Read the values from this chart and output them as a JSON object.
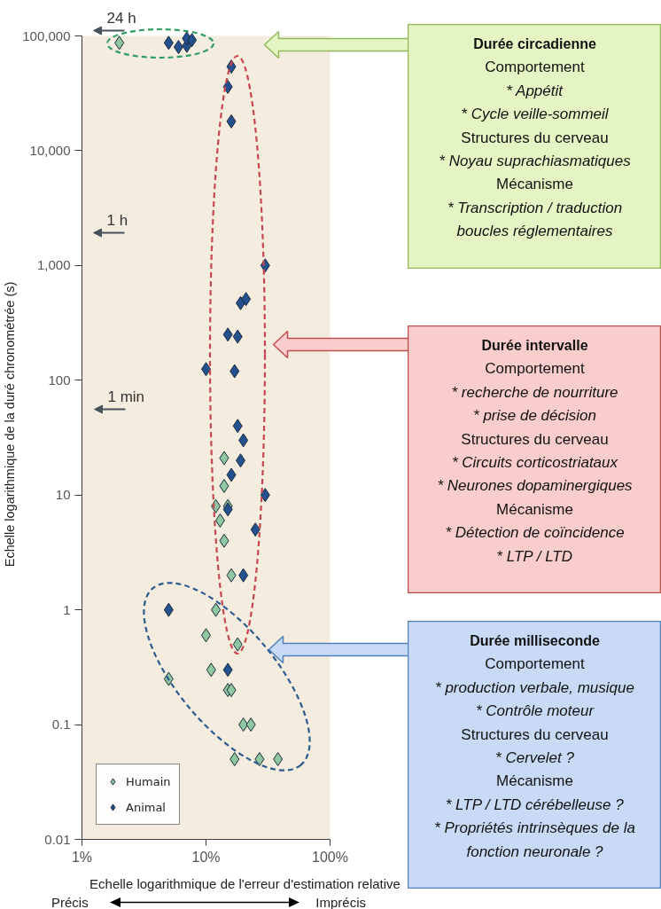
{
  "chart_data": [
    {
      "type": "scatter",
      "xlabel": "Echelle logarithmique de l'erreur d'estimation relative",
      "ylabel": "Echelle logarithmique de la duré chronométrée (s)",
      "log": "xy",
      "xlim": [
        1,
        100
      ],
      "xticks": [
        {
          "value": 1,
          "label": "1%"
        },
        {
          "value": 10,
          "label": "10%"
        },
        {
          "value": 100,
          "label": "100%"
        }
      ],
      "ylim": [
        0.01,
        100000
      ],
      "yticks": [
        0.01,
        0.1,
        1,
        10,
        100,
        {
          "value": 1000,
          "label": "1,000"
        },
        {
          "value": 10000,
          "label": "10,000"
        },
        {
          "value": 100000,
          "label": "100,000"
        }
      ],
      "legend": "bottom left",
      "marker": "diamond",
      "series": [
        {
          "name": "Humain",
          "color": "#8fc7a2",
          "x": [
            2,
            14,
            14,
            12,
            15,
            13,
            14,
            16,
            12,
            10,
            18,
            11,
            5,
            15,
            16,
            20,
            23,
            17,
            27,
            38
          ],
          "values": [
            87000,
            21,
            12,
            8,
            8,
            6,
            4,
            2,
            1,
            0.6,
            0.5,
            0.3,
            0.25,
            0.2,
            0.2,
            0.1,
            0.1,
            0.05,
            0.05,
            0.05
          ]
        },
        {
          "name": "Animal",
          "color": "#23508f",
          "x": [
            5,
            6,
            7,
            7,
            7.7,
            16,
            15,
            16,
            30,
            19,
            21,
            15,
            18,
            10,
            17,
            18,
            20,
            19,
            16,
            30,
            15,
            25,
            20,
            5,
            15
          ],
          "values": [
            87000,
            80000,
            82000,
            95000,
            92000,
            54000,
            36000,
            18000,
            1000,
            470,
            510,
            250,
            240,
            125,
            120,
            40,
            30,
            20,
            15,
            10,
            7.5,
            5,
            2,
            1,
            0.3
          ]
        }
      ],
      "annotations": [
        "24 h",
        "1 h",
        "1 min",
        "Précis",
        "Imprécis"
      ]
    },
    {
      "type": "other",
      "title": "Durée circadienne",
      "annotations": [
        "Comportement\n* Appétit\n* Cycle veille-sommeil",
        "Structures du cerveau\n* Noyau suprachiasmatiques",
        "Mécanisme\n* Transcription / traduction\nboucles réglementaires"
      ]
    },
    {
      "type": "other",
      "title": "Durée intervalle",
      "annotations": [
        "Comportement\n* recherche de nourriture\n* prise de décision",
        "Structures du cerveau\n* Circuits corticostriataux\n* Neurones dopaminergiques",
        "Mécanisme\n* Détection de coïncidence\n* LTP / LTD"
      ]
    },
    {
      "type": "other",
      "title": "Durée milliseconde",
      "annotations": [
        "Comportement\n* production verbale, musique\n* Contrôle moteur",
        "Structures du cerveau\n* Cervelet ?",
        "Mécanisme\n* LTP / LTD cérébelleuse ?\n* Propriétés intrinsèques de la\nfonction neuronale ?"
      ]
    }
  ]
}
